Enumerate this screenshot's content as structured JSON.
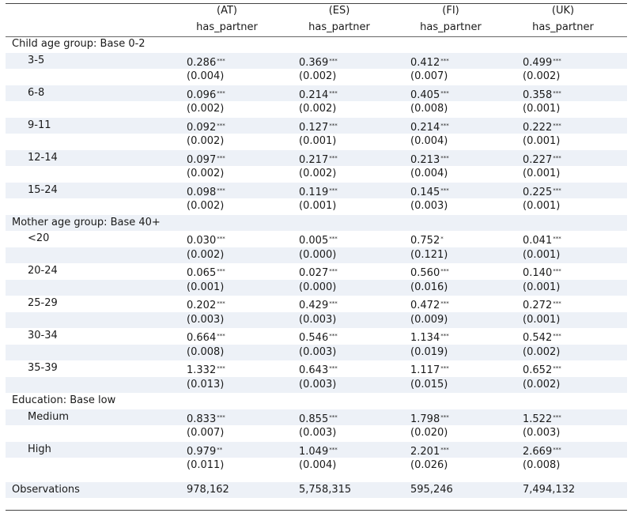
{
  "header": {
    "columns": [
      "(AT)",
      "(ES)",
      "(FI)",
      "(UK)"
    ],
    "dep_var": [
      "has_partner",
      "has_partner",
      "has_partner",
      "has_partner"
    ]
  },
  "sections": [
    {
      "title": "Child age group: Base 0-2",
      "rows": [
        {
          "label": "3-5",
          "coef": [
            "0.286",
            "0.369",
            "0.412",
            "0.499"
          ],
          "stars": [
            "***",
            "***",
            "***",
            "***"
          ],
          "se": [
            "(0.004)",
            "(0.002)",
            "(0.007)",
            "(0.002)"
          ]
        },
        {
          "label": "6-8",
          "coef": [
            "0.096",
            "0.214",
            "0.405",
            "0.358"
          ],
          "stars": [
            "***",
            "***",
            "***",
            "***"
          ],
          "se": [
            "(0.002)",
            "(0.002)",
            "(0.008)",
            "(0.001)"
          ]
        },
        {
          "label": "9-11",
          "coef": [
            "0.092",
            "0.127",
            "0.214",
            "0.222"
          ],
          "stars": [
            "***",
            "***",
            "***",
            "***"
          ],
          "se": [
            "(0.002)",
            "(0.001)",
            "(0.004)",
            "(0.001)"
          ]
        },
        {
          "label": "12-14",
          "coef": [
            "0.097",
            "0.217",
            "0.213",
            "0.227"
          ],
          "stars": [
            "***",
            "***",
            "***",
            "***"
          ],
          "se": [
            "(0.002)",
            "(0.002)",
            "(0.004)",
            "(0.001)"
          ]
        },
        {
          "label": "15-24",
          "coef": [
            "0.098",
            "0.119",
            "0.145",
            "0.225"
          ],
          "stars": [
            "***",
            "***",
            "***",
            "***"
          ],
          "se": [
            "(0.002)",
            "(0.001)",
            "(0.003)",
            "(0.001)"
          ]
        }
      ]
    },
    {
      "title": "Mother age group: Base 40+",
      "rows": [
        {
          "label": "<20",
          "coef": [
            "0.030",
            "0.005",
            "0.752",
            "0.041"
          ],
          "stars": [
            "***",
            "***",
            "*",
            "***"
          ],
          "se": [
            "(0.002)",
            "(0.000)",
            "(0.121)",
            "(0.001)"
          ]
        },
        {
          "label": "20-24",
          "coef": [
            "0.065",
            "0.027",
            "0.560",
            "0.140"
          ],
          "stars": [
            "***",
            "***",
            "***",
            "***"
          ],
          "se": [
            "(0.001)",
            "(0.000)",
            "(0.016)",
            "(0.001)"
          ]
        },
        {
          "label": "25-29",
          "coef": [
            "0.202",
            "0.429",
            "0.472",
            "0.272"
          ],
          "stars": [
            "***",
            "***",
            "***",
            "***"
          ],
          "se": [
            "(0.003)",
            "(0.003)",
            "(0.009)",
            "(0.001)"
          ]
        },
        {
          "label": "30-34",
          "coef": [
            "0.664",
            "0.546",
            "1.134",
            "0.542"
          ],
          "stars": [
            "***",
            "***",
            "***",
            "***"
          ],
          "se": [
            "(0.008)",
            "(0.003)",
            "(0.019)",
            "(0.002)"
          ]
        },
        {
          "label": "35-39",
          "coef": [
            "1.332",
            "0.643",
            "1.117",
            "0.652"
          ],
          "stars": [
            "***",
            "***",
            "***",
            "***"
          ],
          "se": [
            "(0.013)",
            "(0.003)",
            "(0.015)",
            "(0.002)"
          ]
        }
      ]
    },
    {
      "title": "Education: Base low",
      "rows": [
        {
          "label": "Medium",
          "coef": [
            "0.833",
            "0.855",
            "1.798",
            "1.522"
          ],
          "stars": [
            "***",
            "***",
            "***",
            "***"
          ],
          "se": [
            "(0.007)",
            "(0.003)",
            "(0.020)",
            "(0.003)"
          ]
        },
        {
          "label": "High",
          "coef": [
            "0.979",
            "1.049",
            "2.201",
            "2.669"
          ],
          "stars": [
            "**",
            "***",
            "***",
            "***"
          ],
          "se": [
            "(0.011)",
            "(0.004)",
            "(0.026)",
            "(0.008)"
          ]
        }
      ]
    }
  ],
  "observations": {
    "label": "Observations",
    "values": [
      "978,162",
      "5,758,315",
      "595,246",
      "7,494,132"
    ]
  }
}
